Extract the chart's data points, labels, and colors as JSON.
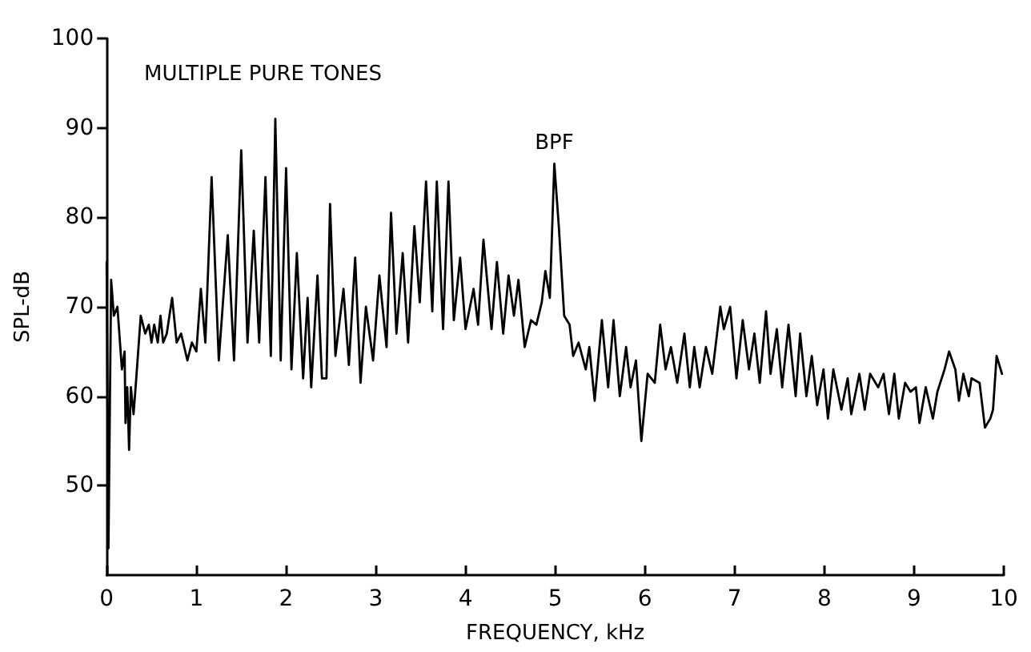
{
  "chart_data": {
    "type": "line",
    "xlabel": "FREQUENCY, kHz",
    "ylabel": "SPL-dB",
    "annotations": [
      "MULTIPLE PURE TONES",
      {
        "text": "BPF",
        "x": 4.99,
        "y": 86
      }
    ],
    "xlim": [
      0,
      10
    ],
    "xticks": [
      0,
      1,
      2,
      3,
      4,
      5,
      6,
      7,
      8,
      9,
      10
    ],
    "ylim": [
      40,
      100
    ],
    "yticks": [
      50,
      60,
      70,
      80,
      90,
      100
    ],
    "grid": false,
    "marker": "none",
    "line_style": "solid",
    "series": [
      {
        "color": "#000000",
        "x": [
          0,
          0.02,
          0.05,
          0.08,
          0.12,
          0.17,
          0.2,
          0.21,
          0.23,
          0.25,
          0.27,
          0.3,
          0.33,
          0.38,
          0.43,
          0.47,
          0.5,
          0.53,
          0.57,
          0.6,
          0.63,
          0.67,
          0.73,
          0.78,
          0.83,
          0.9,
          0.95,
          1.0,
          1.05,
          1.1,
          1.17,
          1.25,
          1.35,
          1.42,
          1.5,
          1.57,
          1.64,
          1.7,
          1.77,
          1.83,
          1.88,
          1.94,
          2.0,
          2.06,
          2.12,
          2.19,
          2.24,
          2.28,
          2.35,
          2.4,
          2.45,
          2.49,
          2.55,
          2.64,
          2.7,
          2.77,
          2.83,
          2.89,
          2.97,
          3.04,
          3.12,
          3.17,
          3.23,
          3.3,
          3.36,
          3.43,
          3.49,
          3.56,
          3.63,
          3.68,
          3.75,
          3.81,
          3.87,
          3.94,
          4.0,
          4.09,
          4.14,
          4.2,
          4.29,
          4.35,
          4.42,
          4.48,
          4.54,
          4.59,
          4.66,
          4.73,
          4.79,
          4.85,
          4.89,
          4.94,
          4.99,
          5.04,
          5.1,
          5.16,
          5.2,
          5.26,
          5.34,
          5.38,
          5.44,
          5.52,
          5.59,
          5.65,
          5.72,
          5.79,
          5.84,
          5.9,
          5.96,
          6.03,
          6.11,
          6.17,
          6.23,
          6.29,
          6.36,
          6.44,
          6.5,
          6.55,
          6.61,
          6.68,
          6.75,
          6.84,
          6.88,
          6.95,
          7.02,
          7.09,
          7.16,
          7.22,
          7.28,
          7.35,
          7.4,
          7.47,
          7.53,
          7.6,
          7.68,
          7.73,
          7.8,
          7.86,
          7.92,
          7.99,
          8.04,
          8.1,
          8.19,
          8.26,
          8.3,
          8.39,
          8.45,
          8.51,
          8.6,
          8.66,
          8.72,
          8.78,
          8.83,
          8.9,
          8.96,
          9.02,
          9.06,
          9.13,
          9.21,
          9.26,
          9.34,
          9.39,
          9.46,
          9.5,
          9.55,
          9.61,
          9.64,
          9.73,
          9.79,
          9.85,
          9.88,
          9.92,
          9.98
        ],
        "values": [
          75,
          43,
          73,
          69,
          70,
          63,
          65,
          57,
          61,
          54,
          61,
          58,
          62,
          69,
          67,
          68,
          66,
          68,
          66,
          69,
          66,
          67,
          71,
          66,
          67,
          64,
          66,
          65,
          72,
          66,
          84.5,
          64,
          78,
          64,
          87.5,
          66,
          78.5,
          66,
          84.5,
          64.5,
          91,
          64,
          85.5,
          63,
          76,
          62,
          71,
          61,
          73.5,
          62,
          62,
          81.5,
          64.5,
          72,
          63.5,
          75.5,
          61.5,
          70,
          64,
          73.5,
          65.5,
          80.5,
          67,
          76,
          66,
          79,
          70.5,
          84,
          69.5,
          84,
          67.5,
          84,
          68.5,
          75.5,
          67.5,
          72,
          68,
          77.5,
          67.5,
          75,
          67,
          73.5,
          69,
          73,
          65.5,
          68.5,
          68,
          70.5,
          74,
          71,
          86,
          79,
          69,
          68,
          64.5,
          66,
          63,
          65.5,
          59.5,
          68.5,
          61,
          68.5,
          60,
          65.5,
          61,
          64,
          55,
          62.5,
          61.5,
          68,
          63,
          65.5,
          61.5,
          67,
          61,
          65.5,
          61,
          65.5,
          62.5,
          70,
          67.5,
          70,
          62,
          68.5,
          63,
          67,
          61.5,
          69.5,
          62.5,
          67.5,
          61,
          68,
          60,
          67,
          60,
          64.5,
          59,
          63,
          57.5,
          63,
          58.5,
          62,
          58,
          62.5,
          58.5,
          62.5,
          61,
          62.5,
          58,
          62.5,
          57.5,
          61.5,
          60.5,
          61,
          57,
          61,
          57.5,
          60.5,
          63,
          65,
          63,
          59.5,
          62.5,
          60,
          62,
          61.5,
          56.5,
          57.5,
          58.5,
          64.5,
          62.5
        ]
      }
    ]
  }
}
